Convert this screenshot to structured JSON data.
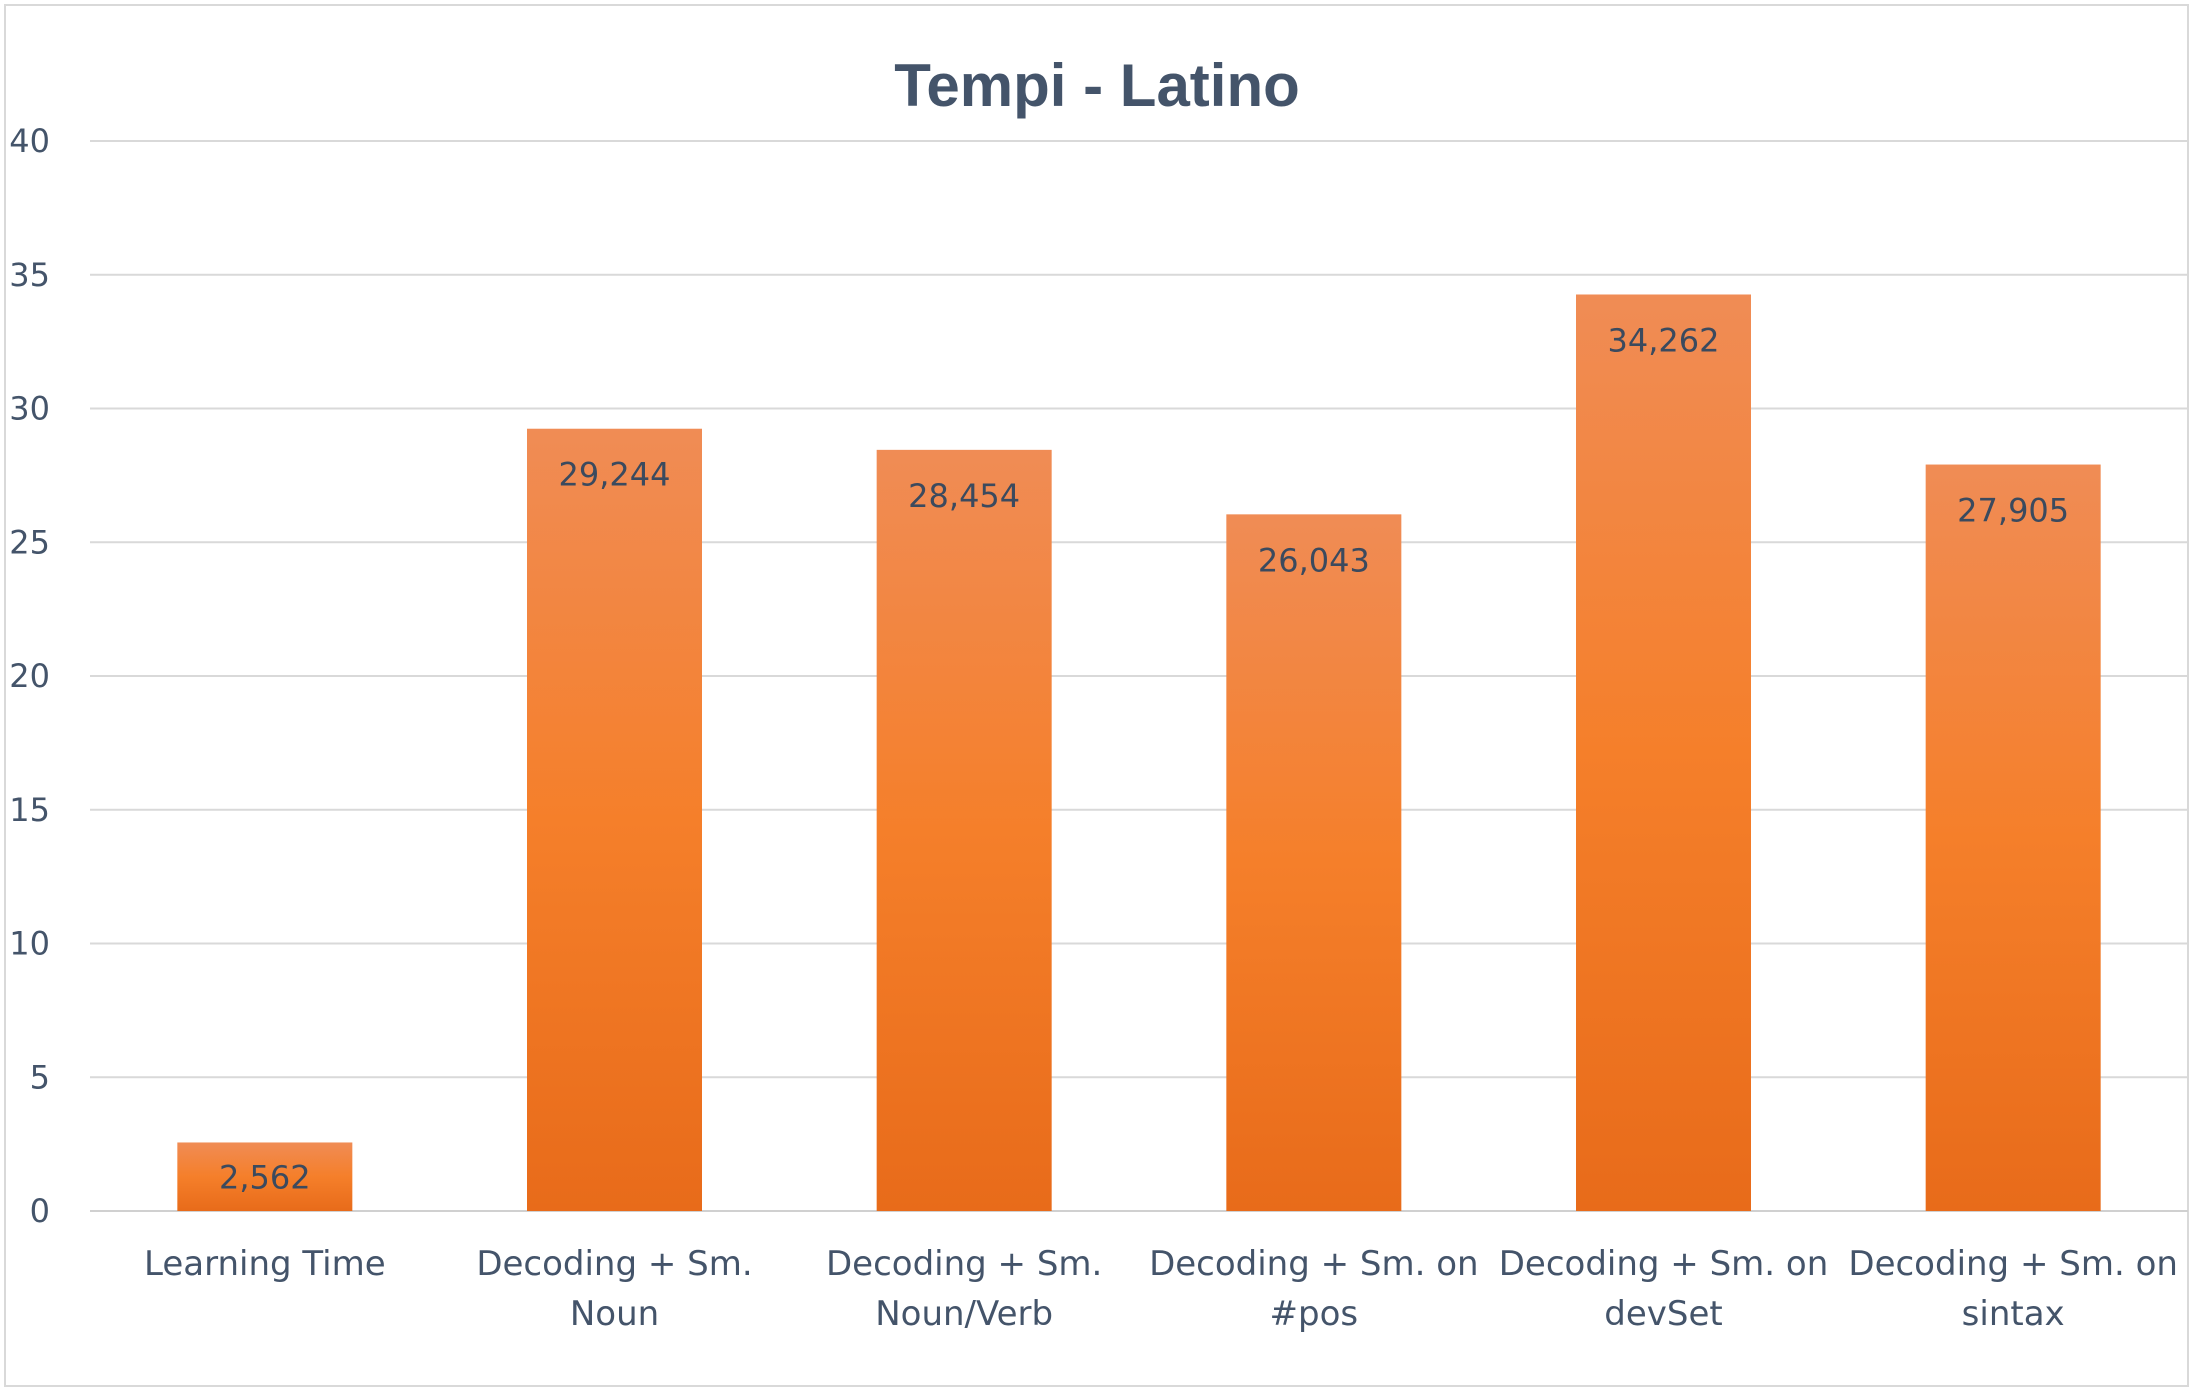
{
  "chart_data": {
    "type": "bar",
    "title": "Tempi - Latino",
    "xlabel": "",
    "ylabel": "",
    "ylim": [
      0,
      40
    ],
    "yticks": [
      0,
      5,
      10,
      15,
      20,
      25,
      30,
      35,
      40
    ],
    "grid": true,
    "legend": "none",
    "categories": [
      [
        "Learning Time"
      ],
      [
        "Decoding + Sm.",
        "Noun"
      ],
      [
        "Decoding + Sm.",
        "Noun/Verb"
      ],
      [
        "Decoding + Sm. on",
        "#pos"
      ],
      [
        "Decoding + Sm. on",
        "devSet"
      ],
      [
        "Decoding + Sm. on",
        "sintax"
      ]
    ],
    "values": [
      2.562,
      29.244,
      28.454,
      26.043,
      34.262,
      27.905
    ],
    "data_labels": [
      "2,562",
      "29,244",
      "28,454",
      "26,043",
      "34,262",
      "27,905"
    ],
    "colors": {
      "bar_top": "#f08c55",
      "bar_mid": "#f57f2a",
      "bar_bottom": "#e86b1a",
      "text": "#44546a",
      "grid": "#d9d9d9"
    }
  }
}
